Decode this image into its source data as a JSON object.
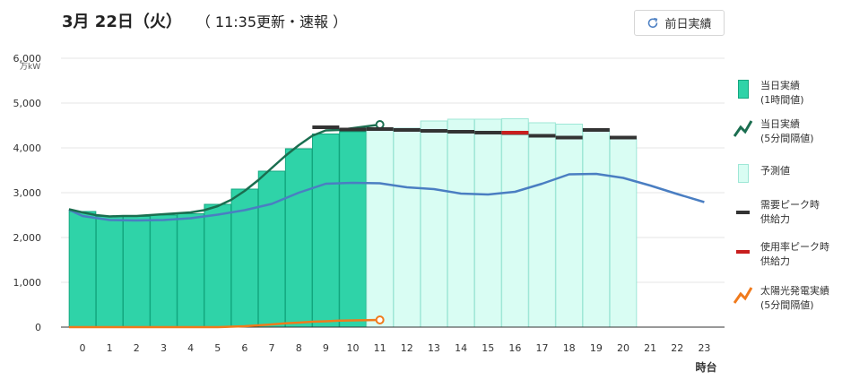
{
  "header": {
    "date": "3月 22日（火）",
    "update": "（ 11:35更新・速報 ）",
    "prev_button_label": "前日実績",
    "prev_button_icon": "refresh-icon"
  },
  "legend": {
    "actual": "当日実績\n(1時間値)",
    "actual5": "当日実績\n(5分間隔値)",
    "forecast": "予測値",
    "peak_demand": "需要ピーク時\n供給力",
    "peak_usage": "使用率ピーク時\n供給力",
    "solar": "太陽光発電実績\n(5分間隔値)"
  },
  "colors": {
    "actual_bar": "#2fd3a8",
    "actual_bar_stroke": "#13a77f",
    "forecast_bar": "#d9fdf3",
    "forecast_bar_stroke": "#9ee7d6",
    "actual_line": "#1b6e50",
    "capacity_line": "#4a7ec2",
    "peak_supply": "#333333",
    "usage_peak_supply": "#c81e1e",
    "solar": "#f07a1c",
    "grid": "#e4e4e4",
    "axis": "#333333"
  },
  "chart_data": {
    "type": "bar",
    "title": "",
    "unit": "万kW",
    "xlabel": "時台",
    "ylabel": "",
    "ylim": [
      0,
      6000
    ],
    "yticks": [
      0,
      1000,
      2000,
      3000,
      4000,
      5000,
      6000
    ],
    "ytick_labels": [
      "0",
      "1,000",
      "2,000",
      "3,000",
      "4,000",
      "5,000",
      "6,000"
    ],
    "categories": [
      "0",
      "1",
      "2",
      "3",
      "4",
      "5",
      "6",
      "7",
      "8",
      "9",
      "10",
      "11",
      "12",
      "13",
      "14",
      "15",
      "16",
      "17",
      "18",
      "19",
      "20",
      "21",
      "22",
      "23"
    ],
    "grid": true,
    "series": [
      {
        "name": "当日実績(1時間値)",
        "kind": "bar",
        "values": [
          2580,
          2470,
          2470,
          2500,
          2530,
          2740,
          3080,
          3480,
          3980,
          4310,
          4360,
          null,
          null,
          null,
          null,
          null,
          null,
          null,
          null,
          null,
          null,
          null,
          null,
          null
        ]
      },
      {
        "name": "予測値",
        "kind": "bar",
        "values": [
          null,
          null,
          null,
          null,
          null,
          null,
          null,
          null,
          null,
          null,
          null,
          4450,
          4440,
          4600,
          4640,
          4640,
          4650,
          4560,
          4530,
          4400,
          4200,
          null,
          null,
          null
        ]
      },
      {
        "name": "当日実績(5分間隔値)",
        "kind": "line",
        "x": [
          -0.5,
          0,
          0.5,
          1,
          1.5,
          2,
          2.5,
          3,
          3.5,
          4,
          4.5,
          5,
          5.5,
          6,
          6.5,
          7,
          7.5,
          8,
          8.5,
          9,
          9.5,
          10,
          10.5,
          11
        ],
        "values": [
          2630,
          2560,
          2500,
          2470,
          2480,
          2480,
          2500,
          2520,
          2540,
          2560,
          2610,
          2700,
          2840,
          3040,
          3280,
          3550,
          3820,
          4060,
          4270,
          4390,
          4400,
          4440,
          4480,
          4520
        ]
      },
      {
        "name": "",
        "kind": "line",
        "x": [
          -0.5,
          0,
          1,
          2,
          3,
          4,
          5,
          6,
          7,
          8,
          9,
          10,
          11,
          12,
          13,
          14,
          15,
          16,
          17,
          18,
          19,
          20,
          21,
          22,
          23
        ],
        "values": [
          2620,
          2480,
          2390,
          2380,
          2390,
          2430,
          2510,
          2610,
          2750,
          3000,
          3200,
          3220,
          3210,
          3120,
          3080,
          2980,
          2960,
          3020,
          3200,
          3410,
          3420,
          3330,
          3160,
          2970,
          2790
        ]
      },
      {
        "name": "需要ピーク時供給力",
        "kind": "tick",
        "x": [
          9,
          10,
          11,
          12,
          13,
          14,
          15,
          16,
          17,
          18,
          19,
          20
        ],
        "values": [
          4460,
          4410,
          4420,
          4400,
          4380,
          4360,
          4340,
          4330,
          4270,
          4230,
          4400,
          4230
        ]
      },
      {
        "name": "使用率ピーク時供給力",
        "kind": "tick",
        "x": [
          16
        ],
        "values": [
          4340
        ]
      },
      {
        "name": "太陽光発電実績(5分間隔値)",
        "kind": "line",
        "x": [
          -0.5,
          0,
          1,
          2,
          3,
          4,
          5,
          5.5,
          6,
          6.5,
          7,
          7.5,
          8,
          8.5,
          9,
          9.5,
          10,
          10.5,
          11
        ],
        "values": [
          0,
          0,
          0,
          0,
          0,
          0,
          0,
          10,
          20,
          40,
          60,
          85,
          100,
          120,
          130,
          145,
          150,
          155,
          160
        ]
      }
    ]
  }
}
